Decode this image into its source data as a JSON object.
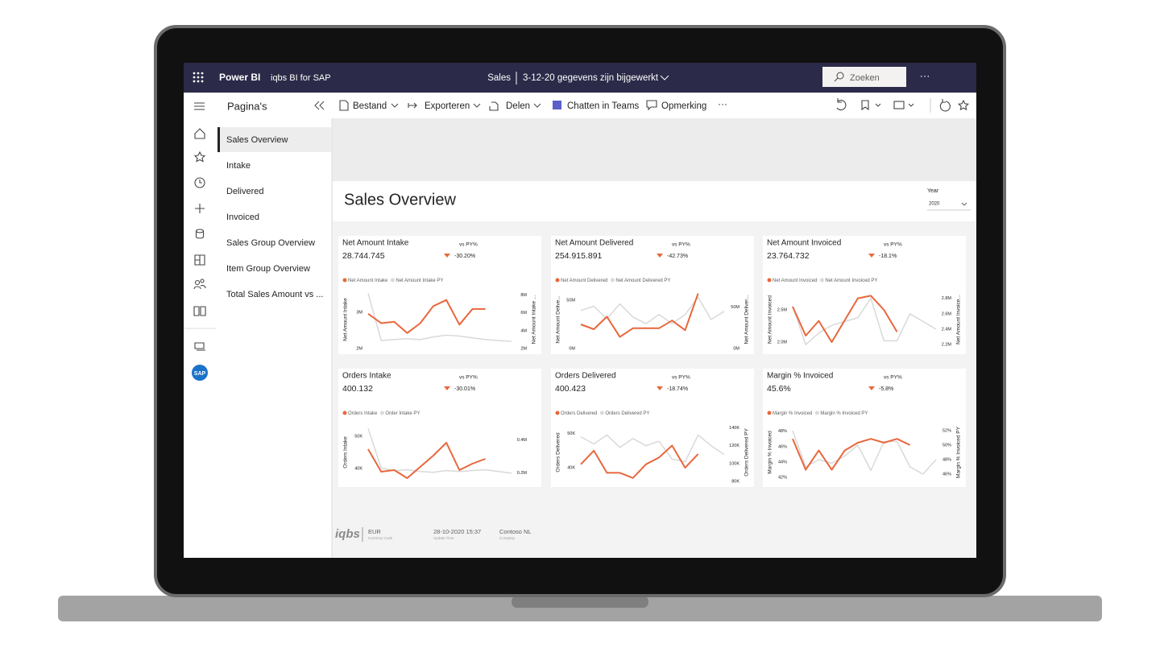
{
  "topbar": {
    "app": "Power BI",
    "workspace": "iqbs BI for SAP",
    "report": "Sales",
    "status": "3-12-20 gegevens zijn bijgewerkt",
    "search": "Zoeken",
    "more": "···"
  },
  "sidebar": {
    "sap_label": "SAP"
  },
  "nav": {
    "title": "Pagina's",
    "pages": [
      "Sales Overview",
      "Intake",
      "Delivered",
      "Invoiced",
      "Sales Group Overview",
      "Item Group Overview",
      "Total Sales Amount vs ..."
    ]
  },
  "toolbar": {
    "items": [
      "Bestand",
      "Exporteren",
      "Delen",
      "Chatten in Teams",
      "Opmerking"
    ],
    "more": "···"
  },
  "report": {
    "title": "Sales Overview",
    "filter_label": "Year",
    "filter_value": "2020"
  },
  "cards": [
    {
      "type": "line",
      "title": "Net Amount Intake",
      "value": "28.744.745",
      "compare": "vs PY%",
      "change": "-30.20%",
      "y_label": "Net Amount Intake",
      "y2_label": "Net Amount Intake ...",
      "ylim": [
        2000000,
        3600000
      ],
      "yticks": [
        {
          "value": 2000000,
          "label": "2M"
        },
        {
          "value": 3000000,
          "label": "3M"
        }
      ],
      "y2lim": [
        2000000,
        8500000
      ],
      "y2ticks": [
        {
          "value": 2000000,
          "label": "2M"
        },
        {
          "value": 4000000,
          "label": "4M"
        },
        {
          "value": 6000000,
          "label": "6M"
        },
        {
          "value": 8000000,
          "label": "8M"
        }
      ],
      "series": [
        {
          "name": "Net Amount Intake",
          "color": "#e8673c",
          "values": [
            2960000,
            2700000,
            2740000,
            2430000,
            2700000,
            3170000,
            3340000,
            2660000,
            3090000,
            3090000,
            null,
            null
          ]
        },
        {
          "name": "Net Amount Intake PY",
          "color": "#d9d9d9",
          "axis": "y2",
          "values": [
            8200000,
            2900000,
            3000000,
            3100000,
            3000000,
            3300000,
            3500000,
            3400000,
            3200000,
            3000000,
            2900000,
            2800000
          ]
        }
      ]
    },
    {
      "type": "line",
      "title": "Net Amount Delivered",
      "value": "254.915.891",
      "compare": "vs PY%",
      "change": "-42.73%",
      "y_label": "Net Amount Delive...",
      "y2_label": "Net Amount Deliver...",
      "ylim": [
        0,
        60000000
      ],
      "yticks": [
        {
          "value": 0,
          "label": "0M"
        },
        {
          "value": 50000000,
          "label": "50M"
        }
      ],
      "y2lim": [
        0,
        70000000
      ],
      "y2ticks": [
        {
          "value": 0,
          "label": "0M"
        },
        {
          "value": 50000000,
          "label": "50M"
        }
      ],
      "series": [
        {
          "name": "Net Amount Delivered",
          "color": "#e8673c",
          "values": [
            25000000,
            20000000,
            33000000,
            12000000,
            21000000,
            21000000,
            21000000,
            29000000,
            19000000,
            57000000,
            null,
            null
          ]
        },
        {
          "name": "Net Amount Delivered PY",
          "color": "#d9d9d9",
          "axis": "y2",
          "values": [
            46000000,
            51000000,
            36000000,
            54000000,
            38000000,
            30000000,
            41000000,
            30000000,
            41000000,
            62000000,
            35000000,
            45000000
          ]
        }
      ]
    },
    {
      "type": "line",
      "title": "Net Amount Invoiced",
      "value": "23.764.732",
      "compare": "vs PY%",
      "change": "-18.1%",
      "y_label": "Net Amount Invoiced",
      "y2_label": "Net Amount Invoice...",
      "ylim": [
        1900000,
        2800000
      ],
      "yticks": [
        {
          "value": 2000000,
          "label": "2.0M"
        },
        {
          "value": 2500000,
          "label": "2.5M"
        }
      ],
      "y2lim": [
        2150000,
        2900000
      ],
      "y2ticks": [
        {
          "value": 2200000,
          "label": "2.2M"
        },
        {
          "value": 2400000,
          "label": "2.4M"
        },
        {
          "value": 2600000,
          "label": "2.6M"
        },
        {
          "value": 2800000,
          "label": "2.8M"
        }
      ],
      "series": [
        {
          "name": "Net Amount Invoiced",
          "color": "#e8673c",
          "values": [
            2550000,
            2100000,
            2330000,
            2000000,
            2340000,
            2680000,
            2720000,
            2500000,
            2160000,
            null,
            null,
            null
          ]
        },
        {
          "name": "Net Amount Invoiced PY",
          "color": "#d9d9d9",
          "axis": "y2",
          "values": [
            2700000,
            2200000,
            2350000,
            2450000,
            2500000,
            2550000,
            2800000,
            2250000,
            2250000,
            2600000,
            2500000,
            2400000
          ]
        }
      ]
    },
    {
      "type": "line",
      "title": "Orders Intake",
      "value": "400.132",
      "compare": "vs PY%",
      "change": "-30.01%",
      "y_label": "Orders Intake",
      "ylim": [
        36000,
        54000
      ],
      "yticks": [
        {
          "value": 40000,
          "label": "40K"
        },
        {
          "value": 50000,
          "label": "50K"
        }
      ],
      "y2lim": [
        150000,
        500000
      ],
      "y2ticks": [
        {
          "value": 200000,
          "label": "0.2M"
        },
        {
          "value": 400000,
          "label": "0.4M"
        }
      ],
      "series": [
        {
          "name": "Orders Intake",
          "color": "#e8673c",
          "values": [
            46000,
            39000,
            39500,
            37000,
            40500,
            44000,
            48000,
            39500,
            41500,
            43000,
            null,
            null
          ]
        },
        {
          "name": "Order Intake PY",
          "color": "#d9d9d9",
          "axis": "y2",
          "values": [
            470000,
            230000,
            215000,
            220000,
            210000,
            205000,
            215000,
            210000,
            215000,
            220000,
            210000,
            200000
          ]
        }
      ]
    },
    {
      "type": "line",
      "title": "Orders Delivered",
      "value": "400.423",
      "compare": "vs PY%",
      "change": "-18.74%",
      "y_label": "Orders Delivered",
      "y2_label": "Orders Delivered PY",
      "ylim": [
        36000,
        53000
      ],
      "yticks": [
        {
          "value": 40000,
          "label": "40K"
        },
        {
          "value": 50000,
          "label": "50K"
        }
      ],
      "y2lim": [
        80000,
        145000
      ],
      "y2ticks": [
        {
          "value": 80000,
          "label": "80K"
        },
        {
          "value": 100000,
          "label": "100K"
        },
        {
          "value": 120000,
          "label": "120K"
        },
        {
          "value": 140000,
          "label": "140K"
        }
      ],
      "series": [
        {
          "name": "Orders Delivered",
          "color": "#e8673c",
          "values": [
            41000,
            45000,
            38500,
            38500,
            37000,
            41000,
            43000,
            46500,
            40000,
            44000,
            null,
            null
          ]
        },
        {
          "name": "Orders Delivered PY",
          "color": "#d9d9d9",
          "axis": "y2",
          "values": [
            130000,
            122000,
            132000,
            118000,
            128000,
            120000,
            125000,
            105000,
            102000,
            132000,
            120000,
            110000
          ]
        }
      ]
    },
    {
      "type": "line",
      "title": "Margin % Invoiced",
      "value": "45.6%",
      "compare": "vs PY%",
      "change": "-5.8%",
      "y_label": "Margin % Invoiced",
      "y2_label": "Margin % Invoiced PY",
      "ylim": [
        41.5,
        49
      ],
      "yticks": [
        {
          "value": 42,
          "label": "42%"
        },
        {
          "value": 44,
          "label": "44%"
        },
        {
          "value": 46,
          "label": "46%"
        },
        {
          "value": 48,
          "label": "48%"
        }
      ],
      "y2lim": [
        45,
        53
      ],
      "y2ticks": [
        {
          "value": 46,
          "label": "46%"
        },
        {
          "value": 48,
          "label": "48%"
        },
        {
          "value": 50,
          "label": "50%"
        },
        {
          "value": 52,
          "label": "52%"
        }
      ],
      "series": [
        {
          "name": "Margin % Invoiced",
          "color": "#e8673c",
          "values": [
            47,
            43,
            45.5,
            43,
            45.5,
            46.5,
            47,
            46.5,
            47,
            46.2,
            null,
            null
          ]
        },
        {
          "name": "Margin % Invoiced PY",
          "color": "#d9d9d9",
          "axis": "y2",
          "values": [
            52,
            47,
            48,
            47.5,
            48.5,
            50,
            46.5,
            50.5,
            50.5,
            47,
            46,
            48
          ]
        }
      ]
    }
  ],
  "footer": {
    "logo": "iqbs",
    "fields": [
      {
        "value": "EUR",
        "label": "Currency Code"
      },
      {
        "value": "28-10-2020 15:37",
        "label": "Update Time"
      },
      {
        "value": "Contoso NL",
        "label": "Company"
      }
    ]
  }
}
